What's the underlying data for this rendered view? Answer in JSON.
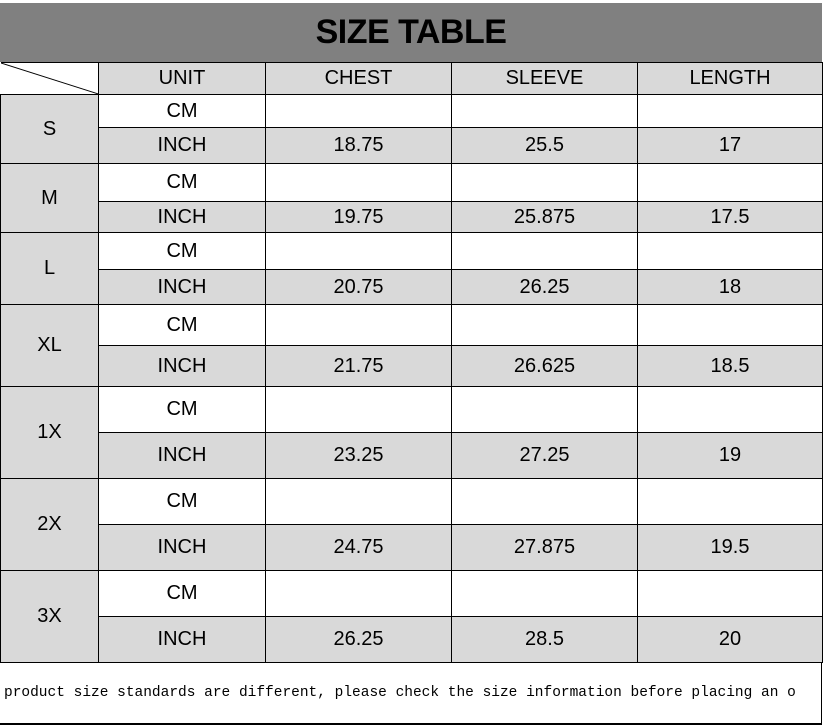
{
  "title": "SIZE TABLE",
  "headers": [
    "UNIT",
    "CHEST",
    "SLEEVE",
    "LENGTH"
  ],
  "units": {
    "cm": "CM",
    "inch": "INCH"
  },
  "rows": [
    {
      "size": "S",
      "cm": [
        "",
        "",
        ""
      ],
      "inch": [
        "18.75",
        "25.5",
        "17"
      ]
    },
    {
      "size": "M",
      "cm": [
        "",
        "",
        ""
      ],
      "inch": [
        "19.75",
        "25.875",
        "17.5"
      ]
    },
    {
      "size": "L",
      "cm": [
        "",
        "",
        ""
      ],
      "inch": [
        "20.75",
        "26.25",
        "18"
      ]
    },
    {
      "size": "XL",
      "cm": [
        "",
        "",
        ""
      ],
      "inch": [
        "21.75",
        "26.625",
        "18.5"
      ]
    },
    {
      "size": "1X",
      "cm": [
        "",
        "",
        ""
      ],
      "inch": [
        "23.25",
        "27.25",
        "19"
      ]
    },
    {
      "size": "2X",
      "cm": [
        "",
        "",
        ""
      ],
      "inch": [
        "24.75",
        "27.875",
        "19.5"
      ]
    },
    {
      "size": "3X",
      "cm": [
        "",
        "",
        ""
      ],
      "inch": [
        "26.25",
        "28.5",
        "20"
      ]
    }
  ],
  "footer": "product size standards are different, please check the size information before placing an o"
}
